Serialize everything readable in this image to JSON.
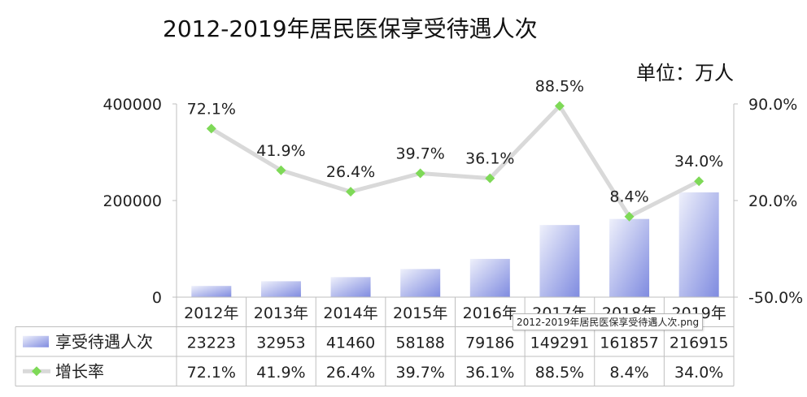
{
  "title": "2012-2019年居民医保享受待遇人次",
  "unit_label": "单位：万人",
  "tooltip": "2012-2019年居民医保享受待遇人次.png",
  "colors": {
    "bar_light": "#eef0fb",
    "bar_dark": "#7f8be0",
    "line": "#d9d9d9",
    "marker": "#7ed957",
    "axis": "#bfbfbf",
    "text": "#222222"
  },
  "chart_data": {
    "type": "bar",
    "categories": [
      "2012年",
      "2013年",
      "2014年",
      "2015年",
      "2016年",
      "2017年",
      "2018年",
      "2019年"
    ],
    "series": [
      {
        "name": "享受待遇人次",
        "type": "bar",
        "axis": "left",
        "values": [
          23223,
          32953,
          41460,
          58188,
          79186,
          149291,
          161857,
          216915
        ]
      },
      {
        "name": "增长率",
        "type": "line",
        "axis": "right",
        "values": [
          72.1,
          41.9,
          26.4,
          39.7,
          36.1,
          88.5,
          8.4,
          34.0
        ],
        "labels": [
          "72.1%",
          "41.9%",
          "26.4%",
          "39.7%",
          "36.1%",
          "88.5%",
          "8.4%",
          "34.0%"
        ]
      }
    ],
    "y_left": {
      "ticks": [
        "400000",
        "200000",
        "0"
      ],
      "ylim": [
        0,
        400000
      ]
    },
    "y_right": {
      "ticks": [
        "90.0%",
        "20.0%",
        "-50.0%"
      ],
      "ylim": [
        -50,
        90
      ]
    },
    "table": {
      "rows": [
        [
          "23223",
          "32953",
          "41460",
          "58188",
          "79186",
          "149291",
          "161857",
          "216915"
        ],
        [
          "72.1%",
          "41.9%",
          "26.4%",
          "39.7%",
          "36.1%",
          "88.5%",
          "8.4%",
          "34.0%"
        ]
      ]
    },
    "legend": "data-table"
  }
}
